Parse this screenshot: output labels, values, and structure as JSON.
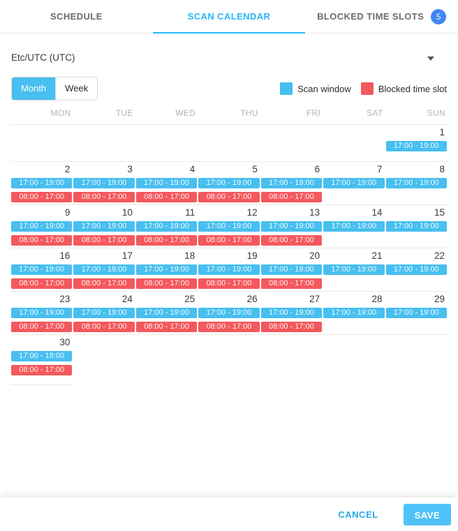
{
  "tabs": [
    {
      "label": "SCHEDULE",
      "active": false
    },
    {
      "label": "SCAN CALENDAR",
      "active": true
    },
    {
      "label": "BLOCKED TIME SLOTS",
      "active": false,
      "badge": "5"
    }
  ],
  "timezone": {
    "value": "Etc/UTC (UTC)"
  },
  "view_toggle": {
    "options": [
      "Month",
      "Week"
    ],
    "selected": "Month"
  },
  "legend": [
    {
      "label": "Scan window",
      "color": "#47bff0",
      "type": "scan"
    },
    {
      "label": "Blocked time slot",
      "color": "#f4585c",
      "type": "blocked"
    }
  ],
  "calendar": {
    "day_headers": [
      "MON",
      "TUE",
      "WED",
      "THU",
      "FRI",
      "SAT",
      "SUN"
    ],
    "weeks": [
      [
        null,
        null,
        null,
        null,
        null,
        null,
        {
          "day": "1",
          "events": [
            {
              "type": "scan",
              "label": "17:00 - 19:00"
            }
          ]
        }
      ],
      [
        {
          "day": "2",
          "events": [
            {
              "type": "scan",
              "label": "17:00 - 19:00"
            },
            {
              "type": "blocked",
              "label": "08:00 - 17:00"
            }
          ]
        },
        {
          "day": "3",
          "events": [
            {
              "type": "scan",
              "label": "17:00 - 19:00"
            },
            {
              "type": "blocked",
              "label": "08:00 - 17:00"
            }
          ]
        },
        {
          "day": "4",
          "events": [
            {
              "type": "scan",
              "label": "17:00 - 19:00"
            },
            {
              "type": "blocked",
              "label": "08:00 - 17:00"
            }
          ]
        },
        {
          "day": "5",
          "events": [
            {
              "type": "scan",
              "label": "17:00 - 19:00"
            },
            {
              "type": "blocked",
              "label": "08:00 - 17:00"
            }
          ]
        },
        {
          "day": "6",
          "events": [
            {
              "type": "scan",
              "label": "17:00 - 19:00"
            },
            {
              "type": "blocked",
              "label": "08:00 - 17:00"
            }
          ]
        },
        {
          "day": "7",
          "events": [
            {
              "type": "scan",
              "label": "17:00 - 19:00"
            }
          ]
        },
        {
          "day": "8",
          "events": [
            {
              "type": "scan",
              "label": "17:00 - 19:00"
            }
          ]
        }
      ],
      [
        {
          "day": "9",
          "events": [
            {
              "type": "scan",
              "label": "17:00 - 19:00"
            },
            {
              "type": "blocked",
              "label": "08:00 - 17:00"
            }
          ]
        },
        {
          "day": "10",
          "events": [
            {
              "type": "scan",
              "label": "17:00 - 19:00"
            },
            {
              "type": "blocked",
              "label": "08:00 - 17:00"
            }
          ]
        },
        {
          "day": "11",
          "events": [
            {
              "type": "scan",
              "label": "17:00 - 19:00"
            },
            {
              "type": "blocked",
              "label": "08:00 - 17:00"
            }
          ]
        },
        {
          "day": "12",
          "events": [
            {
              "type": "scan",
              "label": "17:00 - 19:00"
            },
            {
              "type": "blocked",
              "label": "08:00 - 17:00"
            }
          ]
        },
        {
          "day": "13",
          "events": [
            {
              "type": "scan",
              "label": "17:00 - 19:00"
            },
            {
              "type": "blocked",
              "label": "08:00 - 17:00"
            }
          ]
        },
        {
          "day": "14",
          "events": [
            {
              "type": "scan",
              "label": "17:00 - 19:00"
            }
          ]
        },
        {
          "day": "15",
          "events": [
            {
              "type": "scan",
              "label": "17:00 - 19:00"
            }
          ]
        }
      ],
      [
        {
          "day": "16",
          "events": [
            {
              "type": "scan",
              "label": "17:00 - 19:00"
            },
            {
              "type": "blocked",
              "label": "08:00 - 17:00"
            }
          ]
        },
        {
          "day": "17",
          "events": [
            {
              "type": "scan",
              "label": "17:00 - 19:00"
            },
            {
              "type": "blocked",
              "label": "08:00 - 17:00"
            }
          ]
        },
        {
          "day": "18",
          "events": [
            {
              "type": "scan",
              "label": "17:00 - 19:00"
            },
            {
              "type": "blocked",
              "label": "08:00 - 17:00"
            }
          ]
        },
        {
          "day": "19",
          "events": [
            {
              "type": "scan",
              "label": "17:00 - 19:00"
            },
            {
              "type": "blocked",
              "label": "08:00 - 17:00"
            }
          ]
        },
        {
          "day": "20",
          "events": [
            {
              "type": "scan",
              "label": "17:00 - 19:00"
            },
            {
              "type": "blocked",
              "label": "08:00 - 17:00"
            }
          ]
        },
        {
          "day": "21",
          "events": [
            {
              "type": "scan",
              "label": "17:00 - 19:00"
            }
          ]
        },
        {
          "day": "22",
          "events": [
            {
              "type": "scan",
              "label": "17:00 - 19:00"
            }
          ]
        }
      ],
      [
        {
          "day": "23",
          "events": [
            {
              "type": "scan",
              "label": "17:00 - 19:00"
            },
            {
              "type": "blocked",
              "label": "08:00 - 17:00"
            }
          ]
        },
        {
          "day": "24",
          "events": [
            {
              "type": "scan",
              "label": "17:00 - 19:00"
            },
            {
              "type": "blocked",
              "label": "08:00 - 17:00"
            }
          ]
        },
        {
          "day": "25",
          "events": [
            {
              "type": "scan",
              "label": "17:00 - 19:00"
            },
            {
              "type": "blocked",
              "label": "08:00 - 17:00"
            }
          ]
        },
        {
          "day": "26",
          "events": [
            {
              "type": "scan",
              "label": "17:00 - 19:00"
            },
            {
              "type": "blocked",
              "label": "08:00 - 17:00"
            }
          ]
        },
        {
          "day": "27",
          "events": [
            {
              "type": "scan",
              "label": "17:00 - 19:00"
            },
            {
              "type": "blocked",
              "label": "08:00 - 17:00"
            }
          ]
        },
        {
          "day": "28",
          "events": [
            {
              "type": "scan",
              "label": "17:00 - 19:00"
            }
          ]
        },
        {
          "day": "29",
          "events": [
            {
              "type": "scan",
              "label": "17:00 - 19:00"
            }
          ]
        }
      ],
      [
        {
          "day": "30",
          "events": [
            {
              "type": "scan",
              "label": "17:00 - 19:00"
            },
            {
              "type": "blocked",
              "label": "08:00 - 17:00"
            }
          ]
        },
        null,
        null,
        null,
        null,
        null,
        null
      ]
    ]
  },
  "footer": {
    "cancel_label": "CANCEL",
    "save_label": "SAVE"
  },
  "colors": {
    "accent_tab": "#29b6f6",
    "scan_window": "#47bff0",
    "blocked_slot": "#f4585c",
    "badge": "#4285f4",
    "save_button": "#4fc3f7"
  }
}
